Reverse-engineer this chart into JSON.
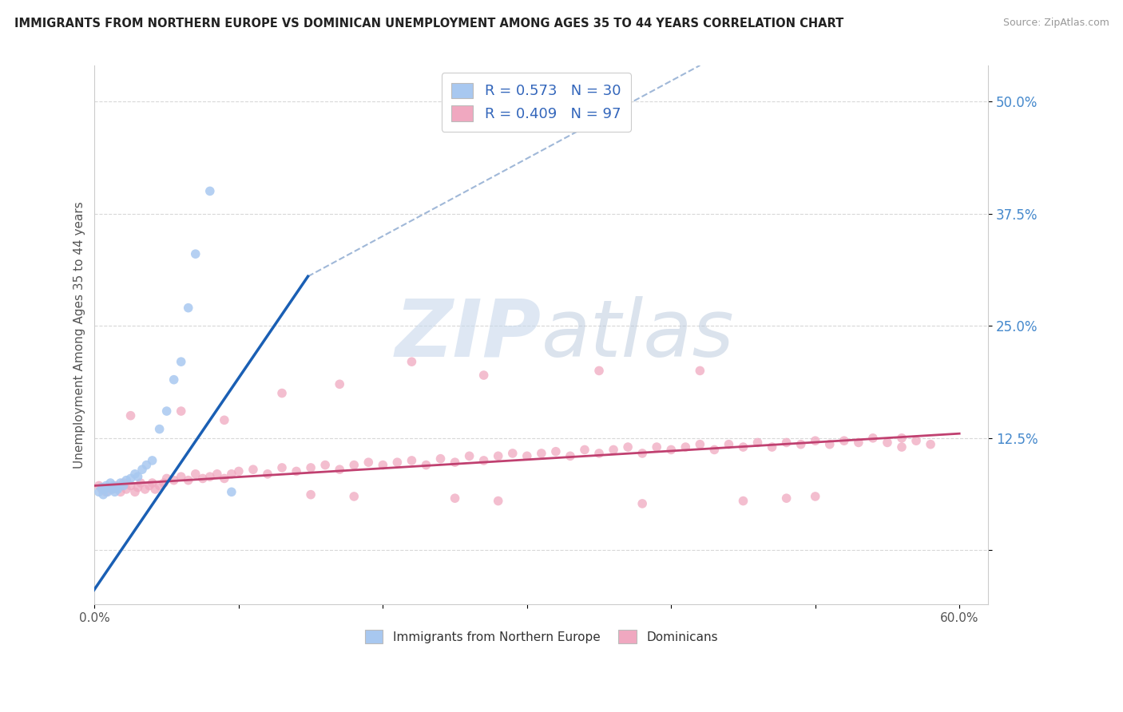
{
  "title": "IMMIGRANTS FROM NORTHERN EUROPE VS DOMINICAN UNEMPLOYMENT AMONG AGES 35 TO 44 YEARS CORRELATION CHART",
  "source": "Source: ZipAtlas.com",
  "ylabel": "Unemployment Among Ages 35 to 44 years",
  "xlim": [
    0.0,
    0.62
  ],
  "ylim": [
    -0.06,
    0.54
  ],
  "ytick_positions": [
    0.0,
    0.125,
    0.25,
    0.375,
    0.5
  ],
  "ytick_labels_right": [
    "",
    "12.5%",
    "25.0%",
    "37.5%",
    "50.0%"
  ],
  "blue_R": 0.573,
  "blue_N": 30,
  "pink_R": 0.409,
  "pink_N": 97,
  "blue_color": "#a8c8f0",
  "pink_color": "#f0a8c0",
  "blue_line_color": "#1a5fb4",
  "pink_line_color": "#c04070",
  "dashed_line_color": "#a0b8d8",
  "watermark_color": "#c8d8ec",
  "grid_color": "#d8d8d8",
  "blue_x": [
    0.003,
    0.005,
    0.006,
    0.007,
    0.008,
    0.009,
    0.01,
    0.011,
    0.012,
    0.013,
    0.014,
    0.015,
    0.016,
    0.018,
    0.02,
    0.022,
    0.025,
    0.028,
    0.03,
    0.033,
    0.036,
    0.04,
    0.045,
    0.05,
    0.055,
    0.06,
    0.065,
    0.07,
    0.08,
    0.095
  ],
  "blue_y": [
    0.065,
    0.07,
    0.062,
    0.068,
    0.072,
    0.065,
    0.07,
    0.075,
    0.068,
    0.072,
    0.065,
    0.07,
    0.068,
    0.075,
    0.072,
    0.078,
    0.08,
    0.085,
    0.082,
    0.09,
    0.095,
    0.1,
    0.135,
    0.155,
    0.19,
    0.21,
    0.27,
    0.33,
    0.4,
    0.065
  ],
  "pink_x": [
    0.003,
    0.005,
    0.008,
    0.01,
    0.012,
    0.015,
    0.018,
    0.02,
    0.022,
    0.025,
    0.028,
    0.03,
    0.032,
    0.035,
    0.038,
    0.04,
    0.042,
    0.045,
    0.048,
    0.05,
    0.055,
    0.06,
    0.065,
    0.07,
    0.075,
    0.08,
    0.085,
    0.09,
    0.095,
    0.1,
    0.11,
    0.12,
    0.13,
    0.14,
    0.15,
    0.16,
    0.17,
    0.18,
    0.19,
    0.2,
    0.21,
    0.22,
    0.23,
    0.24,
    0.25,
    0.26,
    0.27,
    0.28,
    0.29,
    0.3,
    0.31,
    0.32,
    0.33,
    0.34,
    0.35,
    0.36,
    0.37,
    0.38,
    0.39,
    0.4,
    0.41,
    0.42,
    0.43,
    0.44,
    0.45,
    0.46,
    0.47,
    0.48,
    0.49,
    0.5,
    0.51,
    0.52,
    0.53,
    0.54,
    0.55,
    0.56,
    0.57,
    0.58,
    0.025,
    0.06,
    0.09,
    0.13,
    0.17,
    0.22,
    0.27,
    0.35,
    0.42,
    0.5,
    0.18,
    0.28,
    0.38,
    0.48,
    0.15,
    0.25,
    0.45,
    0.56
  ],
  "pink_y": [
    0.072,
    0.068,
    0.065,
    0.07,
    0.068,
    0.072,
    0.065,
    0.075,
    0.068,
    0.072,
    0.065,
    0.07,
    0.075,
    0.068,
    0.072,
    0.075,
    0.068,
    0.072,
    0.075,
    0.08,
    0.078,
    0.082,
    0.078,
    0.085,
    0.08,
    0.082,
    0.085,
    0.08,
    0.085,
    0.088,
    0.09,
    0.085,
    0.092,
    0.088,
    0.092,
    0.095,
    0.09,
    0.095,
    0.098,
    0.095,
    0.098,
    0.1,
    0.095,
    0.102,
    0.098,
    0.105,
    0.1,
    0.105,
    0.108,
    0.105,
    0.108,
    0.11,
    0.105,
    0.112,
    0.108,
    0.112,
    0.115,
    0.108,
    0.115,
    0.112,
    0.115,
    0.118,
    0.112,
    0.118,
    0.115,
    0.12,
    0.115,
    0.12,
    0.118,
    0.122,
    0.118,
    0.122,
    0.12,
    0.125,
    0.12,
    0.125,
    0.122,
    0.118,
    0.15,
    0.155,
    0.145,
    0.175,
    0.185,
    0.21,
    0.195,
    0.2,
    0.2,
    0.06,
    0.06,
    0.055,
    0.052,
    0.058,
    0.062,
    0.058,
    0.055,
    0.115
  ],
  "blue_line_x": [
    -0.005,
    0.148
  ],
  "blue_line_y": [
    -0.055,
    0.305
  ],
  "dashed_line_x": [
    0.148,
    0.42
  ],
  "dashed_line_y": [
    0.305,
    0.54
  ],
  "pink_line_x": [
    0.0,
    0.6
  ],
  "pink_line_y": [
    0.072,
    0.13
  ]
}
